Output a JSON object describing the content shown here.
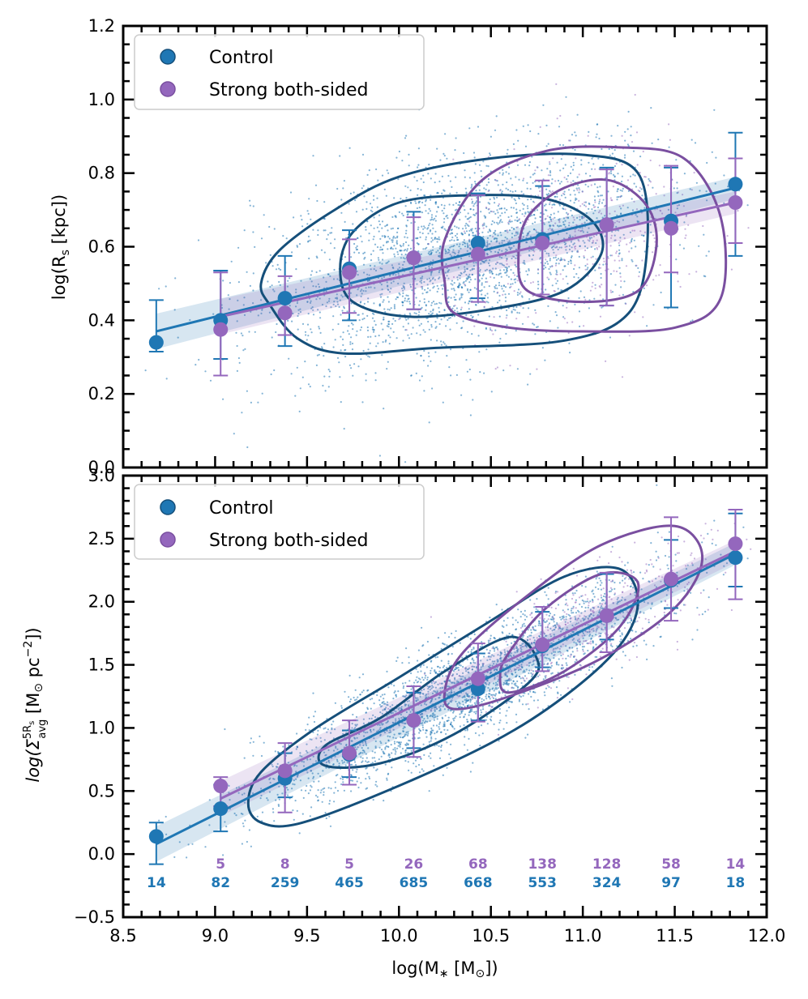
{
  "colors": {
    "control": "#1f77b4",
    "control_dark": "#154f7a",
    "strong": "#9467bd",
    "strong_dark": "#7a4fa0"
  },
  "chart_data": [
    {
      "type": "scatter",
      "id": "top",
      "title": "",
      "xlabel": "",
      "ylabel": "log(R",
      "ylabel_sub": "s",
      "ylabel_end": " [kpc])",
      "xlim": [
        8.5,
        12.0
      ],
      "ylim": [
        0.0,
        1.2
      ],
      "yticks": [
        0.0,
        0.2,
        0.4,
        0.6,
        0.8,
        1.0,
        1.2
      ],
      "ytick_labels": [
        "0.0",
        "0.2",
        "0.4",
        "0.6",
        "0.8",
        "1.0",
        "1.2"
      ],
      "legend": {
        "location": "upper-left",
        "entries": [
          "Control",
          "Strong both-sided"
        ]
      },
      "series": [
        {
          "name": "Control",
          "x": [
            8.68,
            9.03,
            9.38,
            9.73,
            10.08,
            10.43,
            10.78,
            11.13,
            11.48,
            11.83
          ],
          "y": [
            0.34,
            0.4,
            0.46,
            0.54,
            0.57,
            0.61,
            0.62,
            0.66,
            0.67,
            0.77
          ],
          "err_low": [
            0.315,
            0.295,
            0.33,
            0.4,
            0.43,
            0.46,
            0.47,
            0.44,
            0.435,
            0.575
          ],
          "err_high": [
            0.455,
            0.535,
            0.575,
            0.645,
            0.695,
            0.745,
            0.765,
            0.815,
            0.815,
            0.91
          ],
          "fit": {
            "x": [
              8.68,
              11.83
            ],
            "y": [
              0.37,
              0.76
            ]
          }
        },
        {
          "name": "Strong both-sided",
          "x": [
            9.03,
            9.38,
            9.73,
            10.08,
            10.43,
            10.78,
            11.13,
            11.48,
            11.83
          ],
          "y": [
            0.375,
            0.42,
            0.53,
            0.57,
            0.58,
            0.61,
            0.66,
            0.65,
            0.72
          ],
          "err_low": [
            0.25,
            0.36,
            0.42,
            0.43,
            0.45,
            0.47,
            0.44,
            0.53,
            0.61
          ],
          "err_high": [
            0.53,
            0.52,
            0.62,
            0.68,
            0.74,
            0.78,
            0.81,
            0.82,
            0.84
          ],
          "fit": {
            "x": [
              9.03,
              11.83
            ],
            "y": [
              0.41,
              0.72
            ]
          }
        }
      ],
      "contours": [
        {
          "series": "Control",
          "level": "outer",
          "points": [
            [
              9.3,
              0.44
            ],
            [
              9.45,
              0.35
            ],
            [
              9.7,
              0.31
            ],
            [
              10.2,
              0.325
            ],
            [
              10.9,
              0.345
            ],
            [
              11.25,
              0.42
            ],
            [
              11.35,
              0.6
            ],
            [
              11.3,
              0.8
            ],
            [
              11.0,
              0.85
            ],
            [
              10.5,
              0.84
            ],
            [
              10.0,
              0.79
            ],
            [
              9.65,
              0.7
            ],
            [
              9.35,
              0.59
            ],
            [
              9.25,
              0.5
            ]
          ]
        },
        {
          "series": "Control",
          "level": "inner",
          "points": [
            [
              9.75,
              0.45
            ],
            [
              10.05,
              0.41
            ],
            [
              10.5,
              0.43
            ],
            [
              10.9,
              0.48
            ],
            [
              11.1,
              0.58
            ],
            [
              11.05,
              0.67
            ],
            [
              10.8,
              0.73
            ],
            [
              10.4,
              0.74
            ],
            [
              10.0,
              0.72
            ],
            [
              9.75,
              0.64
            ],
            [
              9.68,
              0.54
            ]
          ]
        },
        {
          "series": "Strong both-sided",
          "level": "outer",
          "points": [
            [
              10.3,
              0.42
            ],
            [
              10.6,
              0.38
            ],
            [
              11.0,
              0.37
            ],
            [
              11.5,
              0.38
            ],
            [
              11.75,
              0.46
            ],
            [
              11.75,
              0.68
            ],
            [
              11.55,
              0.84
            ],
            [
              11.2,
              0.87
            ],
            [
              10.8,
              0.86
            ],
            [
              10.45,
              0.78
            ],
            [
              10.25,
              0.62
            ],
            [
              10.25,
              0.5
            ]
          ]
        },
        {
          "series": "Strong both-sided",
          "level": "inner",
          "points": [
            [
              10.7,
              0.48
            ],
            [
              11.0,
              0.45
            ],
            [
              11.3,
              0.48
            ],
            [
              11.4,
              0.6
            ],
            [
              11.35,
              0.71
            ],
            [
              11.15,
              0.78
            ],
            [
              10.9,
              0.76
            ],
            [
              10.7,
              0.68
            ],
            [
              10.65,
              0.57
            ]
          ]
        }
      ]
    },
    {
      "type": "scatter",
      "id": "bottom",
      "title": "",
      "xlabel": "log(M",
      "xlabel_mid": "∗",
      "xlabel_end": " [M",
      "xlabel_sun": "⊙",
      "xlabel_close": "])",
      "ylabel": "log(Σ",
      "ylabel_sup": "5R",
      "ylabel_supsub": "s",
      "ylabel_sub": "avg",
      "ylabel_end": " [M",
      "ylabel_sun": "⊙",
      "ylabel_unit": " pc",
      "ylabel_exp": "−2",
      "ylabel_close": "])",
      "xlim": [
        8.5,
        12.0
      ],
      "ylim": [
        -0.5,
        3.0
      ],
      "xticks": [
        8.5,
        9.0,
        9.5,
        10.0,
        10.5,
        11.0,
        11.5,
        12.0
      ],
      "xtick_labels": [
        "8.5",
        "9.0",
        "9.5",
        "10.0",
        "10.5",
        "11.0",
        "11.5",
        "12.0"
      ],
      "yticks": [
        -0.5,
        0.0,
        0.5,
        1.0,
        1.5,
        2.0,
        2.5,
        3.0
      ],
      "ytick_labels": [
        "−0.5",
        "0.0",
        "0.5",
        "1.0",
        "1.5",
        "2.0",
        "2.5",
        "3.0"
      ],
      "legend": {
        "location": "upper-left",
        "entries": [
          "Control",
          "Strong both-sided"
        ]
      },
      "series": [
        {
          "name": "Control",
          "x": [
            8.68,
            9.03,
            9.38,
            9.73,
            10.08,
            10.43,
            10.78,
            11.13,
            11.48,
            11.83
          ],
          "y": [
            0.14,
            0.36,
            0.6,
            0.79,
            1.06,
            1.31,
            1.65,
            1.89,
            2.17,
            2.35
          ],
          "err_low": [
            -0.08,
            0.18,
            0.45,
            0.61,
            0.84,
            1.06,
            1.48,
            1.7,
            1.95,
            2.12
          ],
          "err_high": [
            0.25,
            0.55,
            0.8,
            0.98,
            1.28,
            1.59,
            1.92,
            2.22,
            2.49,
            2.7
          ],
          "counts": [
            "14",
            "82",
            "259",
            "465",
            "685",
            "668",
            "553",
            "324",
            "97",
            "18"
          ],
          "fit": {
            "x": [
              8.68,
              11.83
            ],
            "y": [
              0.08,
              2.38
            ]
          }
        },
        {
          "name": "Strong both-sided",
          "x": [
            9.03,
            9.38,
            9.73,
            10.08,
            10.43,
            10.78,
            11.13,
            11.48,
            11.83
          ],
          "y": [
            0.54,
            0.66,
            0.8,
            1.06,
            1.39,
            1.66,
            1.89,
            2.18,
            2.46
          ],
          "err_low": [
            0.38,
            0.33,
            0.55,
            0.77,
            1.05,
            1.45,
            1.6,
            1.85,
            2.02
          ],
          "err_high": [
            0.61,
            0.88,
            1.06,
            1.33,
            1.67,
            1.96,
            2.23,
            2.67,
            2.73
          ],
          "counts": [
            "5",
            "8",
            "5",
            "26",
            "68",
            "138",
            "128",
            "58",
            "14"
          ],
          "fit": {
            "x": [
              9.03,
              11.83
            ],
            "y": [
              0.44,
              2.4
            ]
          }
        }
      ],
      "contours": [
        {
          "series": "Control",
          "level": "outer",
          "points": [
            [
              9.25,
              0.25
            ],
            [
              9.45,
              0.24
            ],
            [
              9.9,
              0.48
            ],
            [
              10.5,
              0.88
            ],
            [
              10.9,
              1.25
            ],
            [
              11.2,
              1.65
            ],
            [
              11.3,
              2.0
            ],
            [
              11.2,
              2.26
            ],
            [
              10.9,
              2.2
            ],
            [
              10.5,
              1.85
            ],
            [
              10.0,
              1.4
            ],
            [
              9.55,
              1.0
            ],
            [
              9.25,
              0.65
            ],
            [
              9.18,
              0.4
            ]
          ]
        },
        {
          "series": "Control",
          "level": "inner",
          "points": [
            [
              9.6,
              0.7
            ],
            [
              9.9,
              0.72
            ],
            [
              10.3,
              0.95
            ],
            [
              10.7,
              1.35
            ],
            [
              10.75,
              1.55
            ],
            [
              10.6,
              1.72
            ],
            [
              10.25,
              1.45
            ],
            [
              9.9,
              1.08
            ],
            [
              9.6,
              0.86
            ]
          ]
        },
        {
          "series": "Strong both-sided",
          "level": "outer",
          "points": [
            [
              10.3,
              1.15
            ],
            [
              10.6,
              1.25
            ],
            [
              11.1,
              1.55
            ],
            [
              11.5,
              1.95
            ],
            [
              11.65,
              2.35
            ],
            [
              11.5,
              2.6
            ],
            [
              11.1,
              2.45
            ],
            [
              10.7,
              2.05
            ],
            [
              10.35,
              1.6
            ],
            [
              10.25,
              1.3
            ]
          ]
        },
        {
          "series": "Strong both-sided",
          "level": "inner",
          "points": [
            [
              10.6,
              1.28
            ],
            [
              10.9,
              1.45
            ],
            [
              11.2,
              1.8
            ],
            [
              11.3,
              2.15
            ],
            [
              11.1,
              2.22
            ],
            [
              10.8,
              1.95
            ],
            [
              10.6,
              1.6
            ],
            [
              10.55,
              1.42
            ]
          ]
        }
      ]
    }
  ]
}
